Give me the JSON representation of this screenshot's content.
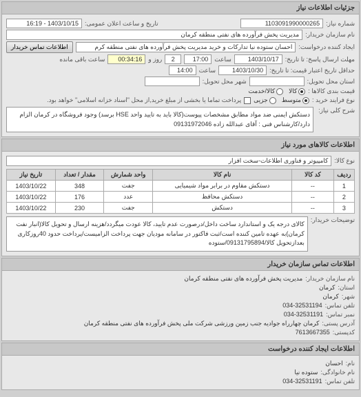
{
  "colors": {
    "bg": "#d0d0d0",
    "panel_bg": "#e8e8e8",
    "header_bg": "#c8c8c8",
    "field_bg": "#ffffff",
    "border": "#aaaaaa",
    "text": "#333333"
  },
  "header": {
    "title": "جزئیات اطلاعات نیاز"
  },
  "need_number": {
    "label": "شماره نیاز:",
    "value": "1103091990000265"
  },
  "public_announce": {
    "label": "تاریخ و ساعت اعلان عمومی:",
    "value": "1403/10/15 - 16:19"
  },
  "buyer_name": {
    "label": "نام سازمان خریدار:",
    "value": "مدیریت پخش فرآورده های نفتی منطقه کرمان"
  },
  "requester": {
    "label": "ایجاد کننده درخواست:",
    "value": "احسان  ستوده نیا  تدارکات و خرید  مدیریت پخش فرآورده های نفتی منطقه کرم",
    "btn": "اطلاعات تماس خریدار"
  },
  "response_deadline": {
    "label": "مهلت ارسال پاسخ: تا تاریخ:",
    "date": "1403/10/17",
    "hour_label": "ساعت",
    "hour": "17:00",
    "remain_days": "2",
    "remain_day_label": "روز و",
    "remain_time": "00:34:16",
    "remain_label": "ساعت باقی مانده"
  },
  "validity": {
    "label": "حداقل تاریخ اعتبار قیمت: تا تاریخ:",
    "date": "1403/10/30",
    "hour_label": "ساعت",
    "hour": "14:00"
  },
  "delivery_address": {
    "label": "استان محل تحویل:",
    "value": ""
  },
  "city": {
    "label": "شهر محل تحویل:",
    "value": ""
  },
  "price_type": {
    "label": "قیمت بندی کالاها :",
    "options": [
      "کالا",
      "کالا/خدمت"
    ],
    "selected": 0
  },
  "quality": {
    "label": "نوع فرایند خرید :",
    "options": [
      "متوسط",
      "جزیی"
    ],
    "selected": 0,
    "note_label": "",
    "note": "پرداخت تماما یا بخشی از مبلغ خرید,از محل \"اسناد خزانه اسلامی\" خواهد بود.",
    "checkbox": false
  },
  "general_desc": {
    "label": "شرح کلی نیاز:",
    "text": "دستکش ایمنی ضد مواد مطابق مشخصات پیوست(کالا باید به تایید واحد HSE برسد) وجود فروشگاه در کرمان الزام دارد/کارشناس فنی : آقای عبدالله زاده 09131972046"
  },
  "goods_info": {
    "header": "اطلاعات کالاهای مورد نیاز",
    "category_label": "نوع کالا:",
    "category": "کامپیوتر و فناوری اطلاعات-سخت افزار"
  },
  "table": {
    "columns": [
      "ردیف",
      "کد کالا",
      "نام کالا",
      "واحد شمارش",
      "مقدار / تعداد",
      "تاریخ نیاز"
    ],
    "rows": [
      [
        "1",
        "--",
        "دستکش مقاوم در برابر مواد شیمیایی",
        "جفت",
        "348",
        "1403/10/22"
      ],
      [
        "2",
        "--",
        "دستکش محافظ",
        "عدد",
        "176",
        "1403/10/22"
      ],
      [
        "3",
        "--",
        "دستکش",
        "جفت",
        "230",
        "1403/10/22"
      ]
    ],
    "col_widths": [
      "6%",
      "12%",
      "40%",
      "14%",
      "14%",
      "14%"
    ]
  },
  "desc": {
    "label": "توضیحات خریدار:",
    "text": "کالای درجه یک و استاندارد ساخت داخل/درصورت عدم تایید، کالا عودت میگردد/هزینه ارسال و تحویل کالا(انبار نفت کرمان)به عهده تامین کننده است/ثبت فاکتور در سامانه مودیان جهت پرداخت الزامیست/پرداخت حدود 40روزکاری بعدازتحویل کالا/09131795894/ستوده"
  },
  "contact": {
    "header": "اطلاعات تماس سازمان خریدار",
    "org_label": "نام سازمان خریدار:",
    "org": "مدیریت پخش فرآورده های نفتی منطقه کرمان",
    "province_label": "استان:",
    "province": "کرمان",
    "city_label": "شهر:",
    "city": "کرمان",
    "phone_label": "تلفن تماس:",
    "phone": "034-32531194",
    "fax_label": "نمبر تماس:",
    "fax": "034-32531191",
    "address_label": "آدرس پستی:",
    "address": "کرمان چهارراه جوادیه جنب زمین ورزشی شرکت ملی پخش فرآورده های نفتی منطقه کرمان",
    "postal_label": "کدپستی:",
    "postal": "7613667355"
  },
  "creator": {
    "header": "اطلاعات ایجاد کننده درخواست",
    "name_label": "نام:",
    "name": "احسان",
    "family_label": "نام خانوادگی:",
    "family": "ستوده نیا",
    "phone_label": "تلفن تماس:",
    "phone": "034-32531191"
  }
}
